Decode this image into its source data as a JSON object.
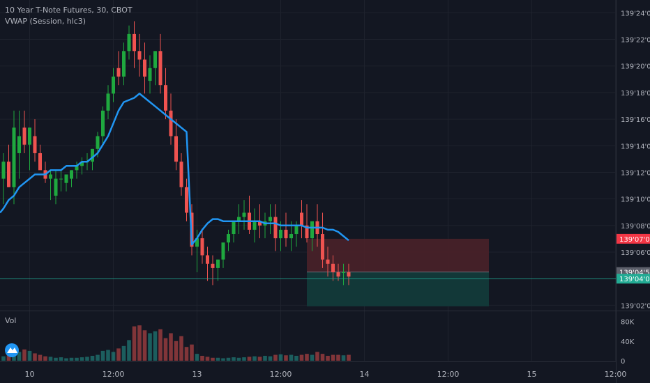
{
  "header": {
    "symbol_line": "10 Year T-Note Futures, 30, CBOT",
    "indicator_line": "VWAP (Session, hlc3)",
    "volume_label": "Vol"
  },
  "colors": {
    "background": "#131722",
    "grid": "#1e222d",
    "up": "#26a69a",
    "up_candle": "#1fa83f",
    "down": "#ef5350",
    "vwap": "#2196f3",
    "text": "#b2b5be",
    "stop_zone": "#4a2129",
    "target_zone": "#123a3a",
    "stop_label": "#f23645",
    "target_label": "#22ab94",
    "entry_label": "#5d606b"
  },
  "chart_data": {
    "type": "candlestick",
    "title": "10 Year T-Note Futures, 30, CBOT",
    "price_axis": {
      "ticks": [
        {
          "value": 139.75,
          "label": "139'24'0"
        },
        {
          "value": 139.6875,
          "label": "139'22'0"
        },
        {
          "value": 139.625,
          "label": "139'20'0"
        },
        {
          "value": 139.5625,
          "label": "139'18'0"
        },
        {
          "value": 139.5,
          "label": "139'16'0"
        },
        {
          "value": 139.4375,
          "label": "139'14'0"
        },
        {
          "value": 139.375,
          "label": "139'12'0"
        },
        {
          "value": 139.3125,
          "label": "139'10'0"
        },
        {
          "value": 139.25,
          "label": "139'08'0"
        },
        {
          "value": 139.1875,
          "label": "139'06'0"
        },
        {
          "value": 139.0625,
          "label": "139'02'0"
        }
      ],
      "range": [
        139.05,
        139.78
      ]
    },
    "time_axis": {
      "labels": [
        {
          "index": 5,
          "label": "10"
        },
        {
          "index": 21,
          "label": "12:00"
        },
        {
          "index": 37,
          "label": "13"
        },
        {
          "index": 53,
          "label": "12:00"
        },
        {
          "index": 69,
          "label": "14"
        },
        {
          "index": 85,
          "label": "12:00"
        },
        {
          "index": 101,
          "label": "15"
        },
        {
          "index": 117,
          "label": "12:00"
        }
      ]
    },
    "volume_axis": {
      "ticks": [
        {
          "value": 80000,
          "label": "80K"
        },
        {
          "value": 40000,
          "label": "40K"
        },
        {
          "value": 0,
          "label": "0"
        }
      ],
      "range": [
        0,
        95000
      ]
    },
    "candles": {
      "open": [
        139.36,
        139.4,
        139.34,
        139.42,
        139.48,
        139.44,
        139.46,
        139.42,
        139.38,
        139.36,
        139.32,
        139.36,
        139.35,
        139.36,
        139.38,
        139.39,
        139.4,
        139.4,
        139.43,
        139.46,
        139.52,
        139.56,
        139.62,
        139.6,
        139.66,
        139.7,
        139.66,
        139.64,
        139.59,
        139.62,
        139.66,
        139.58,
        139.52,
        139.46,
        139.4,
        139.34,
        139.28,
        139.2,
        139.22,
        139.18,
        139.16,
        139.15,
        139.17,
        139.21,
        139.23,
        139.26,
        139.27,
        139.28,
        139.24,
        139.26,
        139.25,
        139.26,
        139.27,
        139.22,
        139.24,
        139.22,
        139.23,
        139.28,
        139.25,
        139.22,
        139.26,
        139.23,
        139.17,
        139.16,
        139.14,
        139.14,
        139.14
      ],
      "high": [
        139.42,
        139.44,
        139.52,
        139.52,
        139.52,
        139.48,
        139.5,
        139.44,
        139.4,
        139.38,
        139.38,
        139.38,
        139.37,
        139.38,
        139.4,
        139.41,
        139.42,
        139.43,
        139.47,
        139.53,
        139.58,
        139.62,
        139.66,
        139.68,
        139.72,
        139.73,
        139.7,
        139.68,
        139.65,
        139.66,
        139.7,
        139.62,
        139.56,
        139.5,
        139.42,
        139.36,
        139.3,
        139.24,
        139.24,
        139.2,
        139.18,
        139.17,
        139.2,
        139.24,
        139.26,
        139.3,
        139.31,
        139.32,
        139.29,
        139.3,
        139.28,
        139.3,
        139.3,
        139.26,
        139.28,
        139.26,
        139.26,
        139.31,
        139.3,
        139.26,
        139.3,
        139.28,
        139.2,
        139.18,
        139.16,
        139.16,
        139.16
      ],
      "low": [
        139.3,
        139.34,
        139.3,
        139.36,
        139.42,
        139.38,
        139.4,
        139.38,
        139.35,
        139.31,
        139.3,
        139.33,
        139.33,
        139.34,
        139.36,
        139.37,
        139.38,
        139.38,
        139.41,
        139.44,
        139.5,
        139.54,
        139.58,
        139.58,
        139.64,
        139.62,
        139.6,
        139.56,
        139.56,
        139.58,
        139.56,
        139.5,
        139.44,
        139.38,
        139.32,
        139.26,
        139.18,
        139.14,
        139.16,
        139.12,
        139.11,
        139.12,
        139.15,
        139.19,
        139.21,
        139.23,
        139.24,
        139.23,
        139.21,
        139.22,
        139.22,
        139.23,
        139.19,
        139.19,
        139.2,
        139.19,
        139.2,
        139.22,
        139.21,
        139.19,
        139.2,
        139.15,
        139.13,
        139.12,
        139.12,
        139.11,
        139.11
      ],
      "close": [
        139.4,
        139.34,
        139.48,
        139.46,
        139.44,
        139.48,
        139.42,
        139.38,
        139.36,
        139.37,
        139.36,
        139.36,
        139.37,
        139.38,
        139.39,
        139.4,
        139.4,
        139.43,
        139.46,
        139.52,
        139.56,
        139.6,
        139.6,
        139.66,
        139.7,
        139.66,
        139.64,
        139.6,
        139.62,
        139.66,
        139.58,
        139.52,
        139.46,
        139.4,
        139.34,
        139.28,
        139.2,
        139.22,
        139.18,
        139.16,
        139.15,
        139.17,
        139.21,
        139.23,
        139.26,
        139.27,
        139.28,
        139.24,
        139.26,
        139.25,
        139.26,
        139.27,
        139.22,
        139.24,
        139.22,
        139.23,
        139.25,
        139.25,
        139.22,
        139.26,
        139.23,
        139.17,
        139.16,
        139.14,
        139.13,
        139.14,
        139.13
      ],
      "volume": [
        9000,
        16000,
        12000,
        18000,
        23000,
        20000,
        15000,
        12000,
        9000,
        8000,
        6000,
        7000,
        5000,
        6000,
        6000,
        7000,
        8000,
        10000,
        12000,
        20000,
        22000,
        18000,
        25000,
        30000,
        42000,
        70000,
        72000,
        62000,
        56000,
        60000,
        64000,
        46000,
        56000,
        40000,
        50000,
        28000,
        33000,
        14000,
        10000,
        8000,
        6000,
        6000,
        5000,
        6000,
        7000,
        6000,
        7000,
        8000,
        9000,
        8000,
        10000,
        9000,
        12000,
        13000,
        11000,
        12000,
        10000,
        12000,
        14000,
        12000,
        18000,
        14000,
        10000,
        12000,
        12000,
        11000,
        12000
      ]
    },
    "vwap": [
      139.29,
      139.31,
      139.32,
      139.34,
      139.35,
      139.36,
      139.37,
      139.37,
      139.37,
      139.38,
      139.38,
      139.38,
      139.39,
      139.39,
      139.39,
      139.4,
      139.4,
      139.41,
      139.42,
      139.44,
      139.46,
      139.49,
      139.52,
      139.54,
      139.545,
      139.55,
      139.56,
      139.55,
      139.54,
      139.53,
      139.52,
      139.51,
      139.5,
      139.49,
      139.48,
      139.47,
      139.205,
      139.22,
      139.24,
      139.255,
      139.265,
      139.265,
      139.26,
      139.26,
      139.26,
      139.26,
      139.26,
      139.26,
      139.26,
      139.26,
      139.255,
      139.255,
      139.255,
      139.25,
      139.25,
      139.25,
      139.25,
      139.25,
      139.245,
      139.245,
      139.245,
      139.245,
      139.24,
      139.24,
      139.235,
      139.225,
      139.215
    ],
    "position": {
      "entry": {
        "value": 139.140625,
        "label": "139'04'5"
      },
      "stop": {
        "value": 139.21875,
        "label": "139'07'0"
      },
      "target": {
        "value": 139.125,
        "label": "139'04'0"
      },
      "target_zone_low": 139.06
    }
  }
}
